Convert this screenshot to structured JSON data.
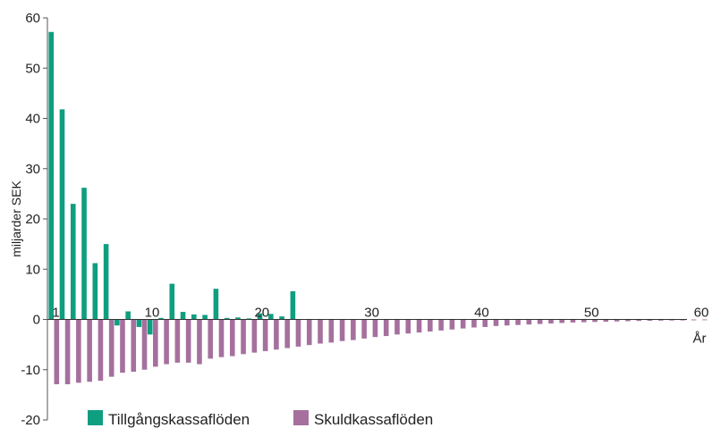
{
  "chart_data": {
    "type": "bar",
    "ylabel": "miljarder SEK",
    "xlabel": "År",
    "ylim": [
      -20,
      60
    ],
    "xlim": [
      0,
      60
    ],
    "yticks": [
      "60",
      "50",
      "40",
      "30",
      "20",
      "10",
      "0",
      "-10",
      "-20"
    ],
    "xticks": [
      "1",
      "10",
      "20",
      "30",
      "40",
      "50",
      "60"
    ],
    "grid": false,
    "legend_position": "bottom",
    "x": [
      1,
      2,
      3,
      4,
      5,
      6,
      7,
      8,
      9,
      10,
      11,
      12,
      13,
      14,
      15,
      16,
      17,
      18,
      19,
      20,
      21,
      22,
      23,
      24,
      25,
      26,
      27,
      28,
      29,
      30,
      31,
      32,
      33,
      34,
      35,
      36,
      37,
      38,
      39,
      40,
      41,
      42,
      43,
      44,
      45,
      46,
      47,
      48,
      49,
      50,
      51,
      52,
      53,
      54,
      55,
      56,
      57,
      58,
      59,
      60
    ],
    "series": [
      {
        "name": "Tillgångskassaflöden",
        "color": "#0e9e80",
        "values": [
          57.2,
          41.8,
          23.0,
          26.2,
          11.2,
          15.0,
          -1.2,
          1.6,
          -1.5,
          -3.0,
          0.3,
          7.1,
          1.5,
          1.0,
          0.9,
          6.1,
          0.3,
          0.4,
          0.2,
          1.2,
          1.1,
          0.6,
          5.6,
          0,
          0,
          0,
          0,
          0,
          0,
          0,
          0,
          0,
          0,
          0,
          0,
          0,
          0,
          0,
          0,
          0,
          0,
          0,
          0,
          0,
          0,
          0,
          0,
          0,
          0,
          0,
          0,
          0,
          0,
          0,
          0,
          0,
          0,
          0,
          0,
          0
        ]
      },
      {
        "name": "Skuldkassaflöden",
        "color": "#a5709e",
        "values": [
          -12.9,
          -12.9,
          -12.6,
          -12.4,
          -12.2,
          -11.4,
          -10.6,
          -10.4,
          -10.0,
          -9.4,
          -8.9,
          -8.6,
          -8.6,
          -8.9,
          -7.8,
          -7.5,
          -7.3,
          -6.9,
          -6.6,
          -6.3,
          -6.0,
          -5.7,
          -5.4,
          -5.1,
          -4.8,
          -4.6,
          -4.3,
          -4.1,
          -3.8,
          -3.5,
          -3.3,
          -3.0,
          -2.8,
          -2.6,
          -2.4,
          -2.2,
          -2.0,
          -1.8,
          -1.6,
          -1.5,
          -1.3,
          -1.2,
          -1.1,
          -1.0,
          -0.9,
          -0.8,
          -0.7,
          -0.6,
          -0.55,
          -0.5,
          -0.45,
          -0.4,
          -0.35,
          -0.3,
          -0.27,
          -0.24,
          -0.21,
          -0.19,
          -0.17,
          -0.15
        ]
      }
    ]
  }
}
